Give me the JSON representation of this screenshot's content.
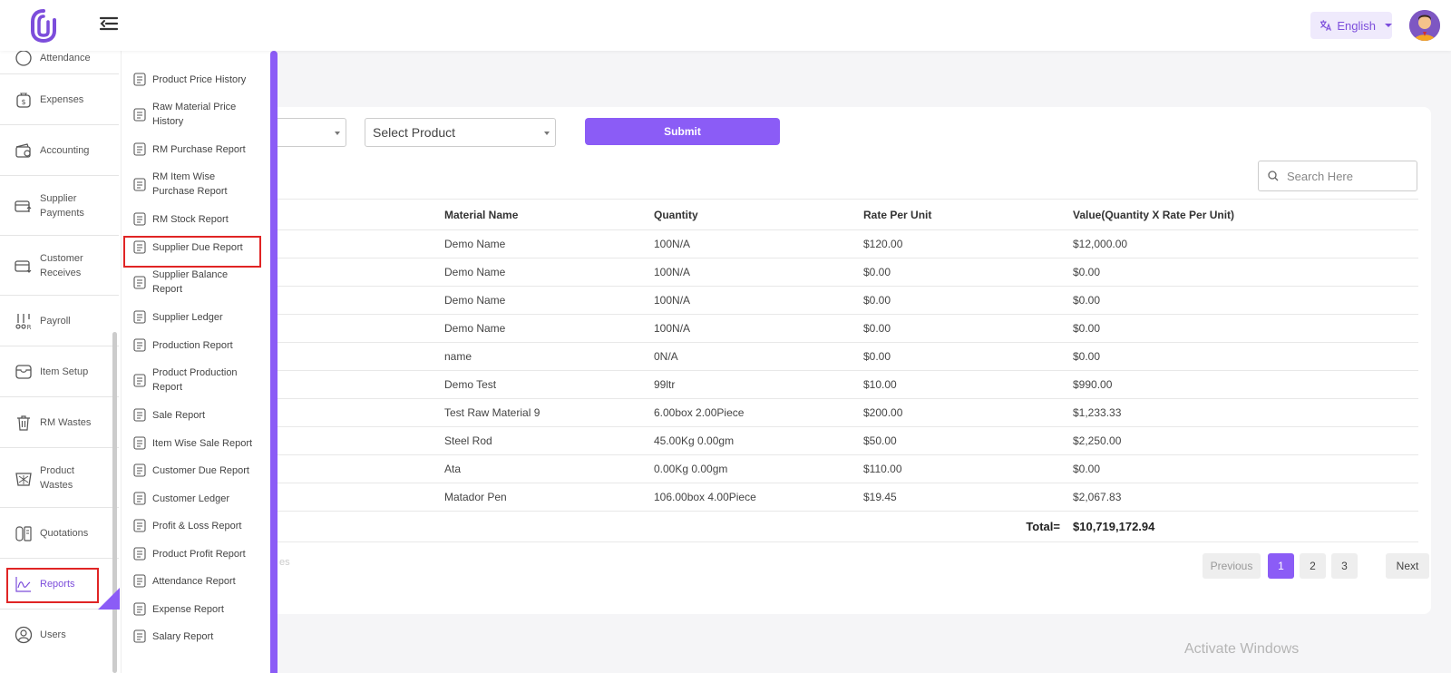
{
  "header": {
    "language_label": "English",
    "colors": {
      "accent": "#8b5cf6",
      "accent_soft": "#efeafc"
    },
    "icons": {
      "logo": "paperclip-logo-icon",
      "menu": "menu-collapse-icon",
      "language": "translate-icon"
    }
  },
  "sidebar": {
    "items": [
      {
        "label": "Attendance",
        "icon": "clock-icon"
      },
      {
        "label": "Expenses",
        "icon": "dollar-bag-icon"
      },
      {
        "label": "Accounting",
        "icon": "wallet-icon"
      },
      {
        "label": "Supplier Payments",
        "icon": "payment-out-icon"
      },
      {
        "label": "Customer Receives",
        "icon": "payment-in-icon"
      },
      {
        "label": "Payroll",
        "icon": "payroll-icon"
      },
      {
        "label": "Item Setup",
        "icon": "item-setup-icon"
      },
      {
        "label": "RM Wastes",
        "icon": "trash-icon"
      },
      {
        "label": "Product Wastes",
        "icon": "basket-icon"
      },
      {
        "label": "Quotations",
        "icon": "quotation-icon"
      },
      {
        "label": "Reports",
        "icon": "chart-icon"
      },
      {
        "label": "Users",
        "icon": "user-icon"
      }
    ]
  },
  "submenu": {
    "items": [
      {
        "label": "Product Price History"
      },
      {
        "label": "Raw Material Price History"
      },
      {
        "label": "RM Purchase Report"
      },
      {
        "label": "RM Item Wise Purchase Report"
      },
      {
        "label": "RM Stock Report"
      },
      {
        "label": "Supplier Due Report"
      },
      {
        "label": "Supplier Balance Report"
      },
      {
        "label": "Supplier Ledger"
      },
      {
        "label": "Production Report"
      },
      {
        "label": "Product Production Report"
      },
      {
        "label": "Sale Report"
      },
      {
        "label": "Item Wise Sale Report"
      },
      {
        "label": "Customer Due Report"
      },
      {
        "label": "Customer Ledger"
      },
      {
        "label": "Profit & Loss Report"
      },
      {
        "label": "Product Profit Report"
      },
      {
        "label": "Attendance Report"
      },
      {
        "label": "Expense Report"
      },
      {
        "label": "Salary Report"
      }
    ]
  },
  "filters": {
    "product_placeholder": "Select Product",
    "submit_label": "Submit",
    "search_placeholder": "Search Here"
  },
  "table": {
    "headers": [
      "Material Name",
      "Quantity",
      "Rate Per Unit",
      "Value(Quantity X Rate Per Unit)"
    ],
    "rows": [
      [
        "Demo Name",
        "100N/A",
        "$120.00",
        "$12,000.00"
      ],
      [
        "Demo Name",
        "100N/A",
        "$0.00",
        "$0.00"
      ],
      [
        "Demo Name",
        "100N/A",
        "$0.00",
        "$0.00"
      ],
      [
        "Demo Name",
        "100N/A",
        "$0.00",
        "$0.00"
      ],
      [
        "name",
        "0N/A",
        "$0.00",
        "$0.00"
      ],
      [
        "Demo Test",
        "99ltr",
        "$10.00",
        "$990.00"
      ],
      [
        "Test Raw Material 9",
        "6.00box 2.00Piece",
        "$200.00",
        "$1,233.33"
      ],
      [
        "Steel Rod",
        "45.00Kg 0.00gm",
        "$50.00",
        "$2,250.00"
      ],
      [
        "Ata",
        "0.00Kg 0.00gm",
        "$110.00",
        "$0.00"
      ],
      [
        "Matador Pen",
        "106.00box 4.00Piece",
        "$19.45",
        "$2,067.83"
      ]
    ],
    "total_label": "Total=",
    "total_value": "$10,719,172.94",
    "faded_text": "es"
  },
  "pagination": {
    "previous": "Previous",
    "pages": [
      "1",
      "2",
      "3"
    ],
    "active_page": "1",
    "next": "Next"
  },
  "watermark": "Activate Windows"
}
